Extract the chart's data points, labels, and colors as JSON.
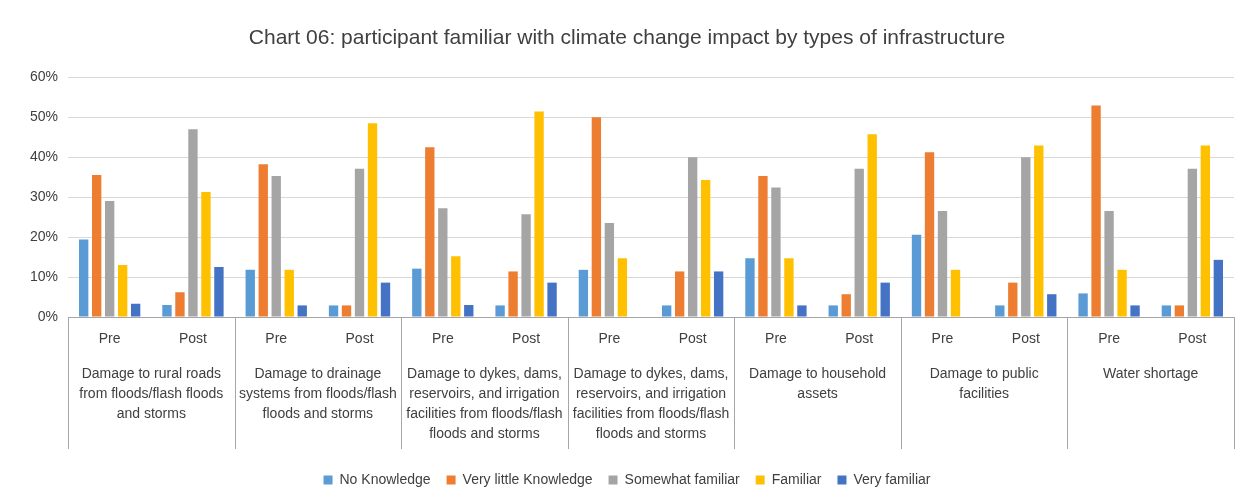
{
  "chart_data": {
    "type": "bar",
    "title": "Chart 06: participant familiar with climate change impact by types of infrastructure",
    "categories": [
      "Pre",
      "Post",
      "Pre",
      "Post",
      "Pre",
      "Post",
      "Pre",
      "Post",
      "Pre",
      "Post",
      "Pre",
      "Post",
      "Pre",
      "Post"
    ],
    "series": [
      {
        "name": "No Knowledge",
        "color": "#5b9bd5",
        "values": [
          19.4,
          3,
          11.8,
          2.9,
          12.1,
          2.9,
          11.8,
          2.9,
          14.7,
          2.9,
          20.6,
          2.9,
          5.9,
          2.9
        ]
      },
      {
        "name": "Very little Knowledge",
        "color": "#ed7d31",
        "values": [
          35.5,
          6.2,
          38.2,
          2.9,
          42.5,
          11.4,
          50,
          11.4,
          35.3,
          5.7,
          41.2,
          8.6,
          52.9,
          2.9
        ]
      },
      {
        "name": "Somewhat familiar",
        "color": "#a5a5a5",
        "values": [
          29,
          47,
          35.3,
          37.1,
          27.2,
          25.7,
          23.5,
          40,
          32.4,
          37.1,
          26.5,
          40,
          26.5,
          37.1
        ]
      },
      {
        "name": "Familiar",
        "color": "#ffc000",
        "values": [
          13,
          31.3,
          11.8,
          48.5,
          15.2,
          51.4,
          14.7,
          34.3,
          14.7,
          45.7,
          11.8,
          42.9,
          11.8,
          42.9
        ]
      },
      {
        "name": "Very familiar",
        "color": "#4472c4",
        "values": [
          3.3,
          12.5,
          2.9,
          8.6,
          3,
          8.6,
          null,
          11.4,
          2.9,
          8.6,
          null,
          5.7,
          2.9,
          14.3
        ]
      }
    ],
    "ylim": [
      0,
      60
    ],
    "yticks": [
      {
        "value": 0,
        "label": "0%"
      },
      {
        "value": 10,
        "label": "10%"
      },
      {
        "value": 20,
        "label": "20%"
      },
      {
        "value": 30,
        "label": "30%"
      },
      {
        "value": 40,
        "label": "40%"
      },
      {
        "value": 50,
        "label": "50%"
      },
      {
        "value": 60,
        "label": "60%"
      }
    ],
    "grid": "y",
    "legend": "bottom",
    "annotations": [
      "Damage to rural roads from floods/flash floods and storms",
      "Damage to drainage systems from floods/flash floods and storms",
      "Damage to dykes, dams, reservoirs, and irrigation facilities from floods/flash floods and storms",
      "Damage to dykes, dams, reservoirs, and irrigation facilities from floods/flash floods and storms",
      "Damage to household assets",
      "Damage to public facilities",
      "Water shortage"
    ]
  }
}
